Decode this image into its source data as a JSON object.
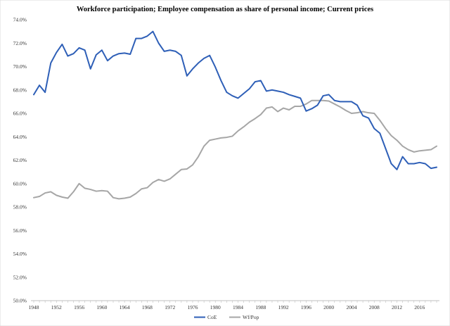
{
  "chart_data": {
    "type": "line",
    "title": "Workforce participation; Employee compensation as share of personal income; Current prices",
    "xlabel": "",
    "ylabel": "",
    "ylim": [
      50.0,
      74.0
    ],
    "yticks": [
      "50.0%",
      "52.0%",
      "54.0%",
      "56.0%",
      "58.0%",
      "60.0%",
      "62.0%",
      "64.0%",
      "66.0%",
      "68.0%",
      "70.0%",
      "72.0%",
      "74.0%"
    ],
    "ytick_values": [
      50,
      52,
      54,
      56,
      58,
      60,
      62,
      64,
      66,
      68,
      70,
      72,
      74
    ],
    "xticks": [
      "1948",
      "1952",
      "1956",
      "1960",
      "1964",
      "1968",
      "1972",
      "1976",
      "1980",
      "1984",
      "1988",
      "1992",
      "1996",
      "2000",
      "2004",
      "2008",
      "2012",
      "2016"
    ],
    "xtick_values": [
      1948,
      1952,
      1956,
      1960,
      1964,
      1968,
      1972,
      1976,
      1980,
      1984,
      1988,
      1992,
      1996,
      2000,
      2004,
      2008,
      2012,
      2016
    ],
    "x": [
      1948,
      1949,
      1950,
      1951,
      1952,
      1953,
      1954,
      1955,
      1956,
      1957,
      1958,
      1959,
      1960,
      1961,
      1962,
      1963,
      1964,
      1965,
      1966,
      1967,
      1968,
      1969,
      1970,
      1971,
      1972,
      1973,
      1974,
      1975,
      1976,
      1977,
      1978,
      1979,
      1980,
      1981,
      1982,
      1983,
      1984,
      1985,
      1986,
      1987,
      1988,
      1989,
      1990,
      1991,
      1992,
      1993,
      1994,
      1995,
      1996,
      1997,
      1998,
      1999,
      2000,
      2001,
      2002,
      2003,
      2004,
      2005,
      2006,
      2007,
      2008,
      2009,
      2010,
      2011,
      2012,
      2013,
      2014,
      2015,
      2016,
      2017,
      2018,
      2019
    ],
    "series": [
      {
        "name": "CoE",
        "color": "#2e5fb7",
        "values": [
          67.6,
          68.4,
          67.8,
          70.3,
          71.2,
          71.9,
          70.9,
          71.1,
          71.6,
          71.4,
          69.8,
          71.0,
          71.4,
          70.5,
          70.9,
          71.1,
          71.15,
          71.05,
          72.4,
          72.4,
          72.6,
          73.0,
          72.0,
          71.3,
          71.4,
          71.3,
          70.95,
          69.2,
          69.8,
          70.3,
          70.7,
          70.95,
          69.95,
          68.8,
          67.8,
          67.5,
          67.3,
          67.7,
          68.1,
          68.7,
          68.8,
          67.9,
          68.0,
          67.9,
          67.8,
          67.6,
          67.45,
          67.3,
          66.2,
          66.4,
          66.7,
          67.5,
          67.6,
          67.1,
          67.0,
          67.0,
          67.0,
          66.7,
          65.8,
          65.6,
          64.7,
          64.3,
          63.0,
          61.7,
          61.2,
          62.3,
          61.7,
          61.7,
          61.8,
          61.7,
          61.3,
          61.4
        ]
      },
      {
        "name": "Wf/Pop",
        "color": "#a6a6a6",
        "values": [
          58.8,
          58.9,
          59.2,
          59.3,
          59.0,
          58.85,
          58.75,
          59.3,
          60.0,
          59.6,
          59.5,
          59.35,
          59.4,
          59.35,
          58.8,
          58.7,
          58.75,
          58.85,
          59.15,
          59.55,
          59.65,
          60.1,
          60.35,
          60.2,
          60.4,
          60.8,
          61.2,
          61.25,
          61.6,
          62.3,
          63.2,
          63.7,
          63.8,
          63.9,
          63.95,
          64.05,
          64.5,
          64.85,
          65.25,
          65.55,
          65.9,
          66.45,
          66.55,
          66.15,
          66.45,
          66.3,
          66.6,
          66.6,
          66.8,
          67.1,
          67.1,
          67.1,
          67.05,
          66.8,
          66.55,
          66.25,
          66.0,
          66.05,
          66.15,
          66.05,
          66.0,
          65.4,
          64.7,
          64.1,
          63.7,
          63.2,
          62.9,
          62.7,
          62.8,
          62.85,
          62.9,
          63.2
        ]
      }
    ],
    "legend": {
      "position": "bottom",
      "entries": [
        "CoE",
        "Wf/Pop"
      ]
    },
    "grid": false
  }
}
